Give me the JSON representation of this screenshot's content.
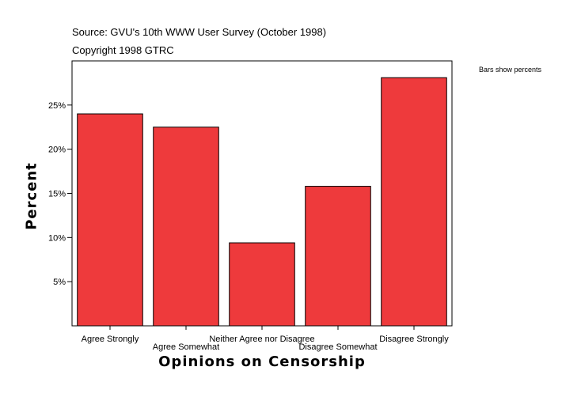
{
  "header": {
    "source": "Source: GVU's 10th WWW User Survey (October 1998)",
    "copyright": "Copyright 1998 GTRC"
  },
  "note": "Bars show percents",
  "colors": {
    "bar": "#ee3a3c",
    "bar_border": "#000000",
    "axis": "#000000"
  },
  "chart_data": {
    "type": "bar",
    "categories": [
      "Agree Strongly",
      "Agree Somewhat",
      "Neither Agree nor Disagree",
      "Disagree Somewhat",
      "Disagree Strongly"
    ],
    "values": [
      24.0,
      22.5,
      9.4,
      15.8,
      28.1
    ],
    "value_unit": "percent",
    "xlabel": "Opinions on Censorship",
    "ylabel": "Percent",
    "ylim": [
      0,
      30
    ],
    "yticks": [
      5,
      10,
      15,
      20,
      25
    ],
    "ytick_labels": [
      "5%",
      "10%",
      "15%",
      "20%",
      "25%"
    ],
    "grid": false,
    "legend": "none"
  }
}
